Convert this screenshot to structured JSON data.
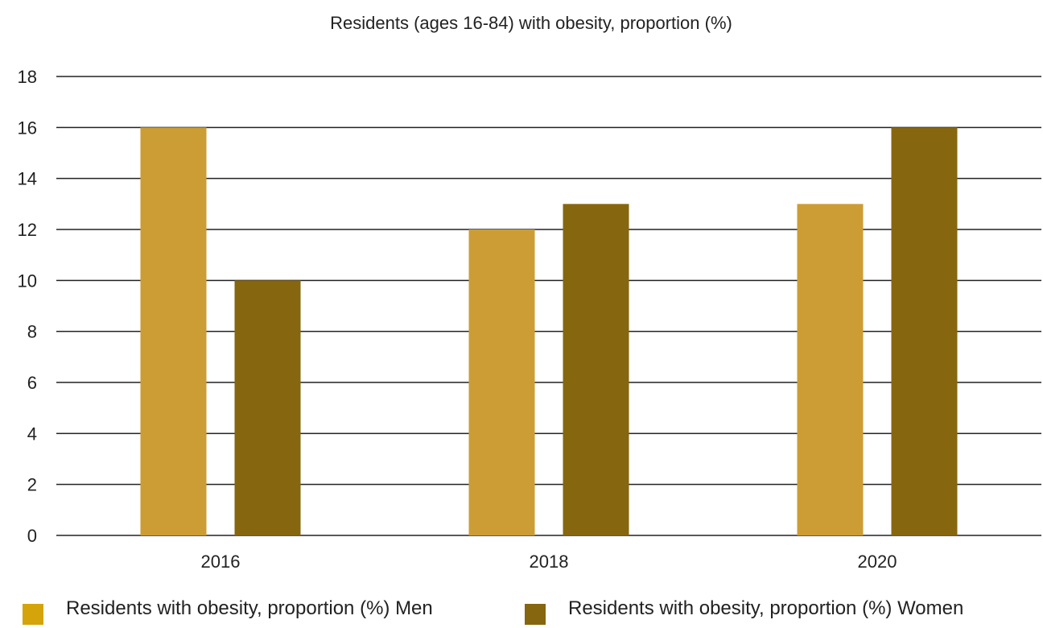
{
  "chart_data": {
    "type": "bar",
    "title": "Residents (ages 16-84) with obesity, proportion (%)",
    "xlabel": "",
    "ylabel": "",
    "categories": [
      "2016",
      "2018",
      "2020"
    ],
    "ylim": [
      0,
      18
    ],
    "yticks": [
      0,
      2,
      4,
      6,
      8,
      10,
      12,
      14,
      16,
      18
    ],
    "grid": true,
    "legend_position": "bottom",
    "series": [
      {
        "name": "Residents with obesity, proportion (%) Men",
        "values": [
          16,
          12,
          13
        ],
        "color": "#CC9D35",
        "legend_color": "#D4A40A"
      },
      {
        "name": "Residents with obesity, proportion (%) Women",
        "values": [
          10,
          13,
          16
        ],
        "color": "#86660F",
        "legend_color": "#86660F"
      }
    ]
  }
}
